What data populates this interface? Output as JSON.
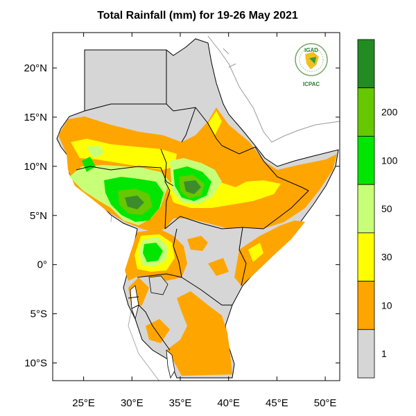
{
  "title": "Total Rainfall (mm) for 19-26 May 2021",
  "logo": {
    "top_text": "IGAD",
    "bottom_text": "ICPAC",
    "color": "#2e7d32"
  },
  "map": {
    "x_axis": {
      "min_lon": 21.8,
      "max_lon": 51.5,
      "ticks": [
        {
          "value": 25,
          "label": "25°E"
        },
        {
          "value": 30,
          "label": "30°E"
        },
        {
          "value": 35,
          "label": "35°E"
        },
        {
          "value": 40,
          "label": "40°E"
        },
        {
          "value": 45,
          "label": "45°E"
        },
        {
          "value": 50,
          "label": "50°E"
        }
      ]
    },
    "y_axis": {
      "min_lat": -11.8,
      "max_lat": 23.6,
      "ticks": [
        {
          "value": 20,
          "label": "20°N"
        },
        {
          "value": 15,
          "label": "15°N"
        },
        {
          "value": 10,
          "label": "10°N"
        },
        {
          "value": 5,
          "label": "5°N"
        },
        {
          "value": 0,
          "label": "0°"
        },
        {
          "value": -5,
          "label": "5°S"
        },
        {
          "value": -10,
          "label": "10°S"
        }
      ]
    },
    "colors": {
      "land_dry": "#d6d6d6",
      "c1_10": "#ffa500",
      "c10_30": "#ffff00",
      "c30_50": "#c8ff78",
      "c50_100": "#00e600",
      "c100_200": "#66c800",
      "c200": "#228b22",
      "dark_patch": "#3c8c2c"
    }
  },
  "colorbar": {
    "bins": [
      {
        "label": "",
        "color": "#228b22"
      },
      {
        "label": "200",
        "color": "#66c800"
      },
      {
        "label": "100",
        "color": "#00e600"
      },
      {
        "label": "50",
        "color": "#c8ff78"
      },
      {
        "label": "30",
        "color": "#ffff00"
      },
      {
        "label": "10",
        "color": "#ffa500"
      },
      {
        "label": "1",
        "color": "#d6d6d6"
      }
    ]
  }
}
